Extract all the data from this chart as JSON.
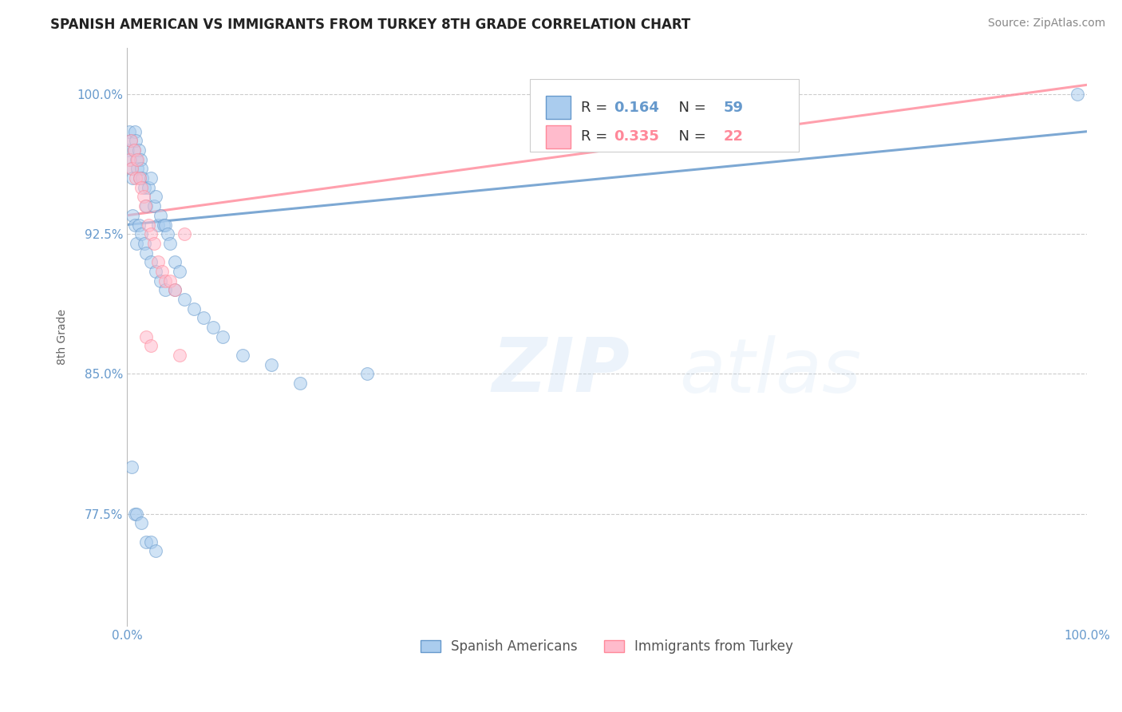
{
  "title": "SPANISH AMERICAN VS IMMIGRANTS FROM TURKEY 8TH GRADE CORRELATION CHART",
  "source": "Source: ZipAtlas.com",
  "ylabel": "8th Grade",
  "xlabel": "",
  "watermark_part1": "ZIP",
  "watermark_part2": "atlas",
  "blue_R": 0.164,
  "blue_N": 59,
  "pink_R": 0.335,
  "pink_N": 22,
  "xlim": [
    0.0,
    1.0
  ],
  "ylim": [
    0.715,
    1.025
  ],
  "yticks": [
    0.775,
    0.85,
    0.925,
    1.0
  ],
  "ytick_labels": [
    "77.5%",
    "85.0%",
    "92.5%",
    "100.0%"
  ],
  "xtick_labels": [
    "0.0%",
    "100.0%"
  ],
  "blue_line_x0": 0.0,
  "blue_line_y0": 0.93,
  "blue_line_x1": 1.0,
  "blue_line_y1": 0.98,
  "pink_line_x0": 0.0,
  "pink_line_y0": 0.935,
  "pink_line_x1": 1.0,
  "pink_line_y1": 1.005,
  "blue_scatter_x": [
    0.001,
    0.002,
    0.003,
    0.004,
    0.005,
    0.006,
    0.007,
    0.008,
    0.009,
    0.01,
    0.011,
    0.012,
    0.013,
    0.014,
    0.015,
    0.016,
    0.018,
    0.02,
    0.022,
    0.025,
    0.028,
    0.03,
    0.032,
    0.035,
    0.038,
    0.04,
    0.042,
    0.045,
    0.05,
    0.055,
    0.006,
    0.008,
    0.01,
    0.012,
    0.015,
    0.018,
    0.02,
    0.025,
    0.03,
    0.035,
    0.04,
    0.05,
    0.06,
    0.07,
    0.08,
    0.09,
    0.1,
    0.12,
    0.15,
    0.18,
    0.005,
    0.008,
    0.01,
    0.015,
    0.02,
    0.025,
    0.03,
    0.25,
    0.99
  ],
  "blue_scatter_y": [
    0.97,
    0.98,
    0.965,
    0.975,
    0.96,
    0.955,
    0.97,
    0.98,
    0.975,
    0.965,
    0.96,
    0.97,
    0.955,
    0.965,
    0.96,
    0.955,
    0.95,
    0.94,
    0.95,
    0.955,
    0.94,
    0.945,
    0.93,
    0.935,
    0.93,
    0.93,
    0.925,
    0.92,
    0.91,
    0.905,
    0.935,
    0.93,
    0.92,
    0.93,
    0.925,
    0.92,
    0.915,
    0.91,
    0.905,
    0.9,
    0.895,
    0.895,
    0.89,
    0.885,
    0.88,
    0.875,
    0.87,
    0.86,
    0.855,
    0.845,
    0.8,
    0.775,
    0.775,
    0.77,
    0.76,
    0.76,
    0.755,
    0.85,
    1.0
  ],
  "pink_scatter_x": [
    0.002,
    0.004,
    0.005,
    0.007,
    0.009,
    0.011,
    0.013,
    0.015,
    0.017,
    0.019,
    0.022,
    0.025,
    0.028,
    0.032,
    0.036,
    0.04,
    0.045,
    0.05,
    0.02,
    0.025,
    0.055,
    0.06
  ],
  "pink_scatter_y": [
    0.965,
    0.975,
    0.96,
    0.97,
    0.955,
    0.965,
    0.955,
    0.95,
    0.945,
    0.94,
    0.93,
    0.925,
    0.92,
    0.91,
    0.905,
    0.9,
    0.9,
    0.895,
    0.87,
    0.865,
    0.86,
    0.925
  ],
  "blue_line_color": "#6699CC",
  "pink_line_color": "#FF8899",
  "blue_scatter_color": "#AACCEE",
  "pink_scatter_color": "#FFBBCC",
  "grid_color": "#CCCCCC",
  "background_color": "#FFFFFF",
  "title_fontsize": 12,
  "axis_label_fontsize": 10,
  "tick_fontsize": 11,
  "legend_fontsize": 13,
  "source_fontsize": 10,
  "scatter_size": 130,
  "scatter_alpha": 0.55,
  "line_width": 2.2,
  "line_alpha_blue": 0.85,
  "line_alpha_pink": 0.8
}
